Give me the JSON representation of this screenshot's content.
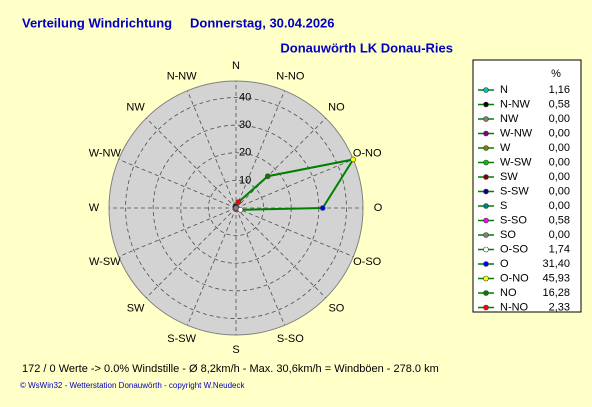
{
  "chart_data": {
    "type": "radar",
    "title": "Verteilung Windrichtung",
    "date": "Donnerstag, 30.04.2026",
    "subtitle": "Donauwörth LK Donau-Ries",
    "legend_header": "%",
    "categories": [
      "N",
      "N-NW",
      "NW",
      "W-NW",
      "W",
      "W-SW",
      "SW",
      "S-SW",
      "S",
      "S-SO",
      "SO",
      "O-SO",
      "O",
      "O-NO",
      "NO",
      "N-NO"
    ],
    "values": [
      1.16,
      0.58,
      0,
      0,
      0,
      0,
      0,
      0,
      0,
      0.58,
      0,
      1.74,
      31.4,
      45.93,
      16.28,
      2.33
    ],
    "value_labels": [
      "1,16",
      "0,58",
      "0,00",
      "0,00",
      "0,00",
      "0,00",
      "0,00",
      "0,00",
      "0,00",
      "0,58",
      "0,00",
      "1,74",
      "31,40",
      "45,93",
      "16,28",
      "2,33"
    ],
    "colors": [
      "#00c0c0",
      "#000000",
      "#808080",
      "#800080",
      "#808000",
      "#00c000",
      "#800000",
      "#000080",
      "#008080",
      "#ff00ff",
      "#808080",
      "#ffffff",
      "#0000ff",
      "#ffff00",
      "#008000",
      "#ff0000"
    ],
    "line_color": "#008000",
    "rlim": [
      0,
      46
    ],
    "rticks": [
      10,
      20,
      30,
      40
    ],
    "grid": true,
    "notes": [
      "172 / 0 Werte  -> 0.0% Windstille   -    Ø 8,2km/h   -   Max. 30,6km/h = Windböen   -    278.0 km",
      "© WsWin32  -  Wetterstation Donauwörth  -  copyright W.Neudeck"
    ]
  }
}
